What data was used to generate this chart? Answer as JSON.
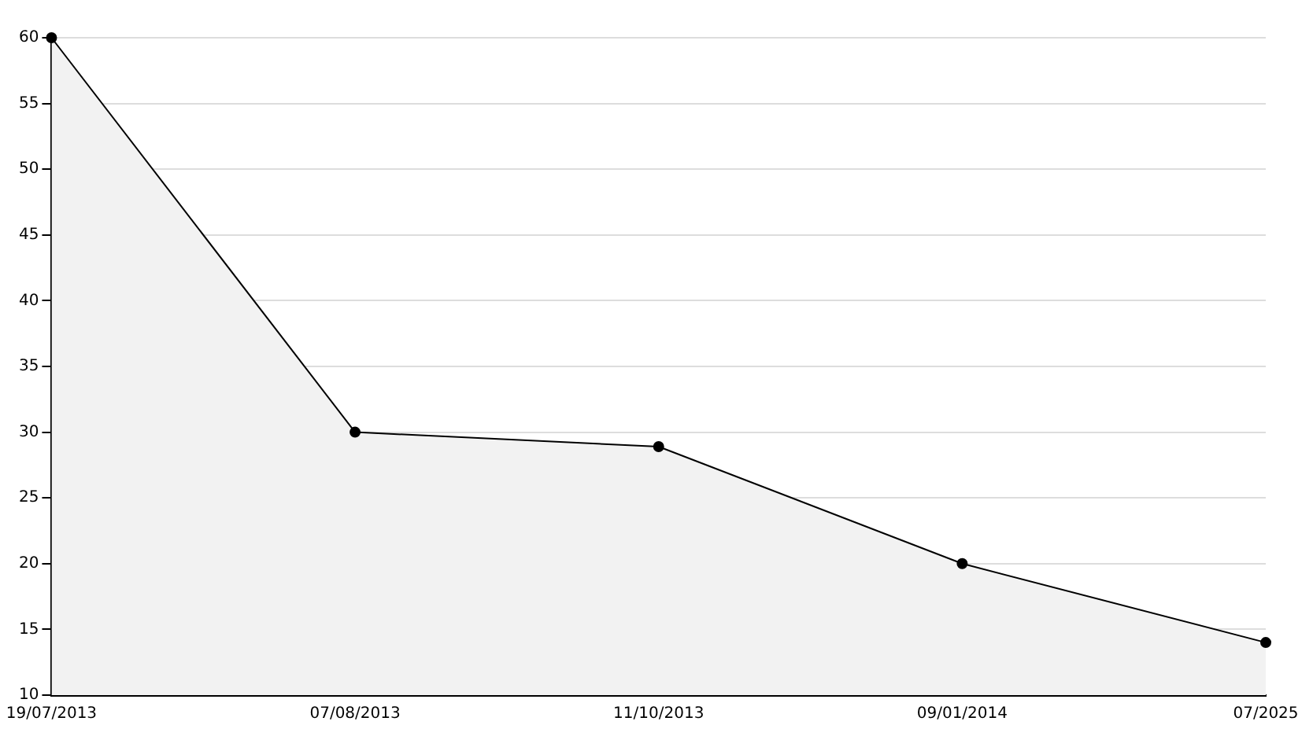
{
  "chart_data": {
    "type": "area",
    "categories": [
      "19/07/2013",
      "07/08/2013",
      "11/10/2013",
      "09/01/2014",
      "07/2025"
    ],
    "series": [
      {
        "color": "#000000",
        "values": [
          60,
          30,
          28.9,
          20,
          14
        ]
      }
    ],
    "ylim": [
      10,
      60
    ],
    "yticks": [
      10,
      15,
      20,
      25,
      30,
      35,
      40,
      45,
      50,
      55,
      60
    ],
    "grid": "y",
    "legend": false,
    "marker": "circle",
    "line_style": "solid"
  }
}
